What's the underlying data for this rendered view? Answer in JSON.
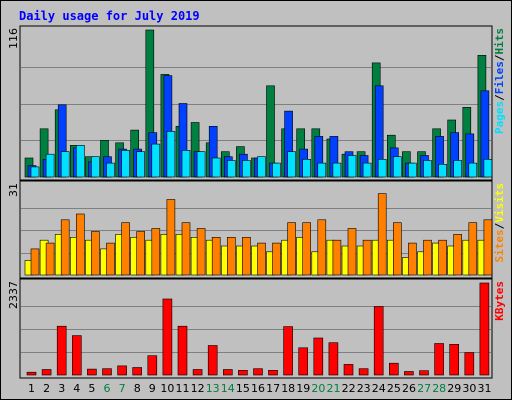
{
  "chart_data": {
    "type": "bar",
    "title": "Daily usage for July 2019",
    "categories": [
      "1",
      "2",
      "3",
      "4",
      "5",
      "6",
      "7",
      "8",
      "9",
      "10",
      "11",
      "12",
      "13",
      "14",
      "15",
      "16",
      "17",
      "18",
      "19",
      "20",
      "21",
      "22",
      "23",
      "24",
      "25",
      "26",
      "27",
      "28",
      "29",
      "30",
      "31"
    ],
    "weekend_days": [
      6,
      7,
      13,
      14,
      20,
      21,
      27,
      28
    ],
    "colors": {
      "hits": "#008040",
      "files": "#0040ff",
      "pages": "#00e0ff",
      "visits": "#ffff00",
      "sites": "#ff8000",
      "kbytes": "#ff0000",
      "weekday_label": "#000000",
      "weekend_label": "#008040",
      "title": "#0000ff",
      "plot_bg": "#c0c0c0",
      "grid": "#808080"
    },
    "panels": [
      {
        "name": "hits-files-pages",
        "ymax_label": "116",
        "ylim": [
          0,
          116
        ],
        "legend": [
          {
            "text": "Pages",
            "color": "#00e0ff"
          },
          {
            "text": "Files",
            "color": "#0040ff"
          },
          {
            "text": "Hits",
            "color": "#008040"
          }
        ],
        "series": [
          {
            "name": "Hits",
            "color": "#008040",
            "values": [
              15,
              38,
              53,
              25,
              16,
              29,
              27,
              37,
              116,
              81,
              40,
              43,
              27,
              20,
              24,
              15,
              72,
              38,
              38,
              38,
              30,
              18,
              20,
              90,
              33,
              20,
              20,
              38,
              45,
              55,
              96
            ]
          },
          {
            "name": "Files",
            "color": "#0040ff",
            "values": [
              9,
              14,
              57,
              23,
              12,
              16,
              22,
              22,
              35,
              80,
              58,
              20,
              40,
              16,
              18,
              15,
              11,
              52,
              22,
              32,
              32,
              20,
              17,
              72,
              23,
              11,
              17,
              32,
              35,
              34,
              68
            ]
          },
          {
            "name": "Pages",
            "color": "#00e0ff",
            "values": [
              8,
              18,
              20,
              25,
              16,
              11,
              21,
              20,
              26,
              36,
              21,
              20,
              15,
              13,
              13,
              16,
              11,
              20,
              14,
              11,
              11,
              17,
              11,
              14,
              16,
              11,
              13,
              10,
              13,
              11,
              14
            ]
          }
        ]
      },
      {
        "name": "visits-sites",
        "ymax_label": "31",
        "ylim": [
          0,
          31
        ],
        "legend": [
          {
            "text": "Sites",
            "color": "#ff8000"
          },
          {
            "text": "Visits",
            "color": "#ffff00"
          }
        ],
        "series": [
          {
            "name": "Visits",
            "color": "#ffff00",
            "values": [
              5,
              12,
              14,
              13,
              12,
              9,
              14,
              13,
              12,
              14,
              14,
              13,
              12,
              10,
              10,
              10,
              8,
              12,
              13,
              8,
              12,
              10,
              10,
              12,
              12,
              6,
              8,
              11,
              10,
              12,
              12
            ]
          },
          {
            "name": "Sites",
            "color": "#ff8000",
            "values": [
              9,
              11,
              19,
              21,
              15,
              11,
              18,
              15,
              16,
              26,
              18,
              16,
              13,
              13,
              13,
              11,
              11,
              18,
              18,
              19,
              12,
              16,
              12,
              28,
              18,
              11,
              12,
              12,
              14,
              18,
              19
            ]
          }
        ]
      },
      {
        "name": "kbytes",
        "ymax_label": "2337",
        "ylim": [
          0,
          2337
        ],
        "legend": [
          {
            "text": "KBytes",
            "color": "#ff0000"
          }
        ],
        "series": [
          {
            "name": "KBytes",
            "color": "#ff0000",
            "values": [
              70,
              140,
              1240,
              1000,
              150,
              160,
              230,
              190,
              490,
              1930,
              1240,
              140,
              750,
              140,
              120,
              160,
              120,
              1230,
              690,
              940,
              820,
              270,
              160,
              1740,
              300,
              90,
              110,
              800,
              780,
              570,
              2337
            ]
          }
        ]
      }
    ]
  }
}
